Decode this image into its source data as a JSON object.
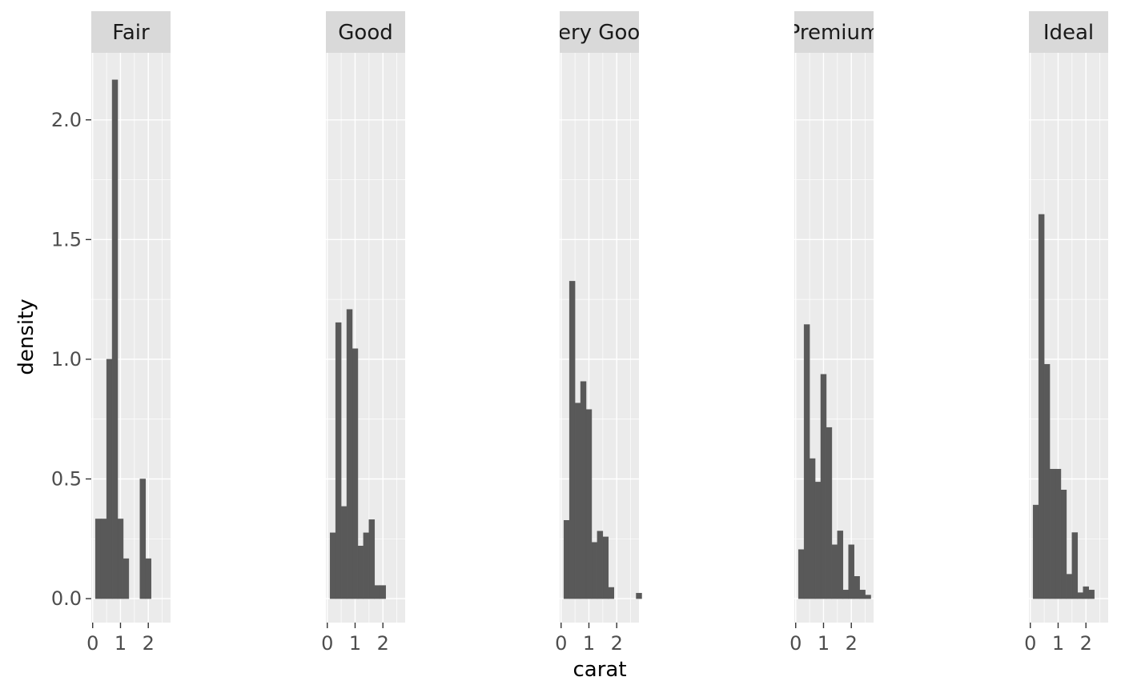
{
  "chart_data": {
    "type": "bar",
    "title": "",
    "xlabel": "carat",
    "ylabel": "density",
    "xlim": [
      -0.05,
      2.8
    ],
    "ylim": [
      -0.1,
      2.28
    ],
    "x_ticks": [
      0,
      1,
      2
    ],
    "x_tick_labels": [
      "0",
      "1",
      "2"
    ],
    "y_ticks": [
      0.0,
      0.5,
      1.0,
      1.5,
      2.0
    ],
    "y_tick_labels": [
      "0.0",
      "0.5",
      "1.0",
      "1.5",
      "2.0"
    ],
    "bin_start": 0.2,
    "bin_width": 0.2,
    "grid": true,
    "legend": "none",
    "bar_color": "#595959",
    "panel_color": "#ebebeb",
    "strip_color": "#d9d9d9",
    "facets": [
      {
        "label": "Fair",
        "values": [
          0.333,
          0.333,
          1.0,
          2.167,
          0.333,
          0.167,
          0,
          0,
          0.5,
          0.167
        ]
      },
      {
        "label": "Good",
        "values": [
          0.275,
          1.153,
          0.385,
          1.208,
          1.044,
          0.22,
          0.275,
          0.33,
          0.055,
          0.055
        ]
      },
      {
        "label": "Very Good",
        "values": [
          0.327,
          1.326,
          0.817,
          0.907,
          0.79,
          0.235,
          0.282,
          0.258,
          0.047,
          0,
          0,
          0,
          0,
          0.023
        ]
      },
      {
        "label": "Premium",
        "values": [
          0.205,
          1.145,
          0.585,
          0.487,
          0.937,
          0.715,
          0.225,
          0.283,
          0.036,
          0.225,
          0.093,
          0.036,
          0.015
        ]
      },
      {
        "label": "Ideal",
        "values": [
          0.391,
          1.605,
          0.979,
          0.541,
          0.541,
          0.454,
          0.102,
          0.276,
          0.025,
          0.05,
          0.036
        ]
      }
    ]
  }
}
